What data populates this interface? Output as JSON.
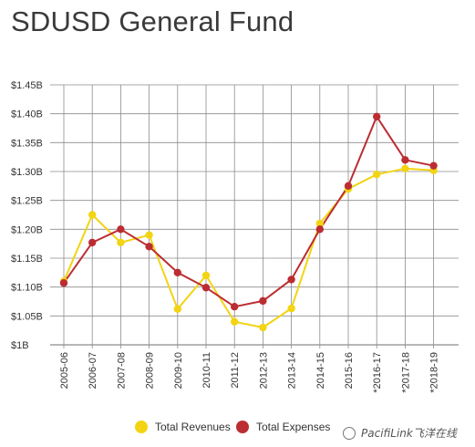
{
  "title": "SDUSD General Fund",
  "watermark": "PacifiLink飞洋在线",
  "colors": {
    "revenues": "#f2d413",
    "expenses": "#bb2d32",
    "grid": "#8c8c8c"
  },
  "chart_data": {
    "type": "line",
    "title": "SDUSD General Fund",
    "xlabel": "",
    "ylabel": "",
    "ylim": [
      1.0,
      1.45
    ],
    "yticks": [
      1.0,
      1.05,
      1.1,
      1.15,
      1.2,
      1.25,
      1.3,
      1.35,
      1.4,
      1.45
    ],
    "ytick_labels": [
      "$1B",
      "$1.05B",
      "$1.10B",
      "$1.15B",
      "$1.20B",
      "$1.25B",
      "$1.30B",
      "$1.35B",
      "$1.40B",
      "$1.45B"
    ],
    "categories": [
      "2005-06",
      "2006-07",
      "2007-08",
      "2008-09",
      "2009-10",
      "2010-11",
      "2011-12",
      "2012-13",
      "2013-14",
      "2014-15",
      "2015-16",
      "*2016-17",
      "*2017-18",
      "*2018-19"
    ],
    "grid": true,
    "legend_position": "bottom",
    "series": [
      {
        "name": "Total Revenues",
        "color": "#f2d413",
        "values": [
          1.11,
          1.225,
          1.177,
          1.19,
          1.062,
          1.12,
          1.04,
          1.03,
          1.063,
          1.21,
          1.27,
          1.295,
          1.305,
          1.302
        ]
      },
      {
        "name": "Total Expenses",
        "color": "#bb2d32",
        "values": [
          1.107,
          1.177,
          1.2,
          1.17,
          1.125,
          1.099,
          1.066,
          1.076,
          1.113,
          1.2,
          1.275,
          1.395,
          1.32,
          1.31
        ]
      }
    ]
  }
}
